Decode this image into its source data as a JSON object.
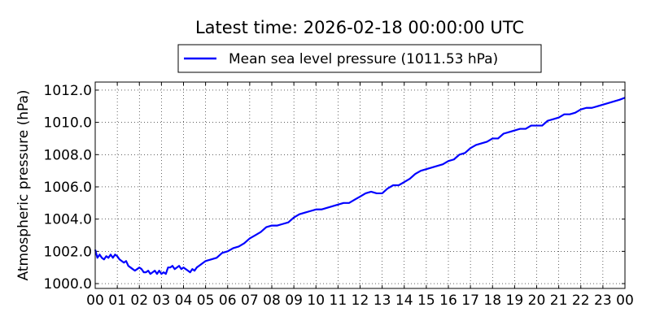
{
  "chart_data": {
    "type": "line",
    "title": "Latest time: 2026-02-18 00:00:00 UTC",
    "xlabel": "",
    "ylabel": "Atmospheric pressure (hPa)",
    "xlim": [
      0,
      24
    ],
    "ylim": [
      999.7,
      1012.5
    ],
    "grid": true,
    "legend_placement": "top-center",
    "x_ticks": [
      0,
      1,
      2,
      3,
      4,
      5,
      6,
      7,
      8,
      9,
      10,
      11,
      12,
      13,
      14,
      15,
      16,
      17,
      18,
      19,
      20,
      21,
      22,
      23,
      24
    ],
    "x_tick_labels": [
      "00",
      "01",
      "02",
      "03",
      "04",
      "05",
      "06",
      "07",
      "08",
      "09",
      "10",
      "11",
      "12",
      "13",
      "14",
      "15",
      "16",
      "17",
      "18",
      "19",
      "20",
      "21",
      "22",
      "23",
      "00"
    ],
    "y_ticks": [
      1000,
      1002,
      1004,
      1006,
      1008,
      1010,
      1012
    ],
    "y_tick_labels": [
      "1000.0",
      "1002.0",
      "1004.0",
      "1006.0",
      "1008.0",
      "1010.0",
      "1012.0"
    ],
    "series": [
      {
        "name": "Mean sea level pressure (1011.53 hPa)",
        "color": "#0000ff",
        "x": [
          0.0,
          0.1,
          0.2,
          0.3,
          0.4,
          0.5,
          0.6,
          0.7,
          0.8,
          0.9,
          1.0,
          1.1,
          1.2,
          1.3,
          1.4,
          1.5,
          1.6,
          1.7,
          1.8,
          1.9,
          2.0,
          2.1,
          2.2,
          2.3,
          2.4,
          2.5,
          2.6,
          2.7,
          2.8,
          2.9,
          3.0,
          3.1,
          3.2,
          3.3,
          3.4,
          3.5,
          3.6,
          3.7,
          3.8,
          3.9,
          4.0,
          4.1,
          4.2,
          4.3,
          4.4,
          4.5,
          4.6,
          4.7,
          4.8,
          4.9,
          5.0,
          5.25,
          5.5,
          5.75,
          6.0,
          6.25,
          6.5,
          6.75,
          7.0,
          7.25,
          7.5,
          7.75,
          8.0,
          8.25,
          8.5,
          8.75,
          9.0,
          9.25,
          9.5,
          9.75,
          10.0,
          10.25,
          10.5,
          10.75,
          11.0,
          11.25,
          11.5,
          11.75,
          12.0,
          12.25,
          12.5,
          12.75,
          13.0,
          13.25,
          13.5,
          13.75,
          14.0,
          14.25,
          14.5,
          14.75,
          15.0,
          15.25,
          15.5,
          15.75,
          16.0,
          16.25,
          16.5,
          16.75,
          17.0,
          17.25,
          17.5,
          17.75,
          18.0,
          18.25,
          18.5,
          18.75,
          19.0,
          19.25,
          19.5,
          19.75,
          20.0,
          20.25,
          20.5,
          20.75,
          21.0,
          21.25,
          21.5,
          21.75,
          22.0,
          22.25,
          22.5,
          22.75,
          23.0,
          23.25,
          23.5,
          23.75,
          24.0
        ],
        "y": [
          1002.1,
          1001.6,
          1001.8,
          1001.6,
          1001.5,
          1001.7,
          1001.6,
          1001.8,
          1001.6,
          1001.8,
          1001.7,
          1001.5,
          1001.4,
          1001.3,
          1001.4,
          1001.1,
          1001.0,
          1000.9,
          1000.8,
          1000.9,
          1001.0,
          1000.9,
          1000.7,
          1000.7,
          1000.8,
          1000.6,
          1000.7,
          1000.8,
          1000.6,
          1000.8,
          1000.6,
          1000.7,
          1000.6,
          1001.0,
          1001.0,
          1001.1,
          1000.9,
          1001.0,
          1001.1,
          1000.9,
          1001.0,
          1000.9,
          1000.8,
          1000.7,
          1000.9,
          1000.8,
          1001.0,
          1001.1,
          1001.2,
          1001.3,
          1001.4,
          1001.5,
          1001.6,
          1001.9,
          1002.0,
          1002.2,
          1002.3,
          1002.5,
          1002.8,
          1003.0,
          1003.2,
          1003.5,
          1003.6,
          1003.6,
          1003.7,
          1003.8,
          1004.1,
          1004.3,
          1004.4,
          1004.5,
          1004.6,
          1004.6,
          1004.7,
          1004.8,
          1004.9,
          1005.0,
          1005.0,
          1005.2,
          1005.4,
          1005.6,
          1005.7,
          1005.6,
          1005.6,
          1005.9,
          1006.1,
          1006.1,
          1006.3,
          1006.5,
          1006.8,
          1007.0,
          1007.1,
          1007.2,
          1007.3,
          1007.4,
          1007.6,
          1007.7,
          1008.0,
          1008.1,
          1008.4,
          1008.6,
          1008.7,
          1008.8,
          1009.0,
          1009.0,
          1009.3,
          1009.4,
          1009.5,
          1009.6,
          1009.6,
          1009.8,
          1009.8,
          1009.8,
          1010.1,
          1010.2,
          1010.3,
          1010.5,
          1010.5,
          1010.6,
          1010.8,
          1010.9,
          1010.9,
          1011.0,
          1011.1,
          1011.2,
          1011.3,
          1011.4,
          1011.53
        ]
      }
    ]
  }
}
